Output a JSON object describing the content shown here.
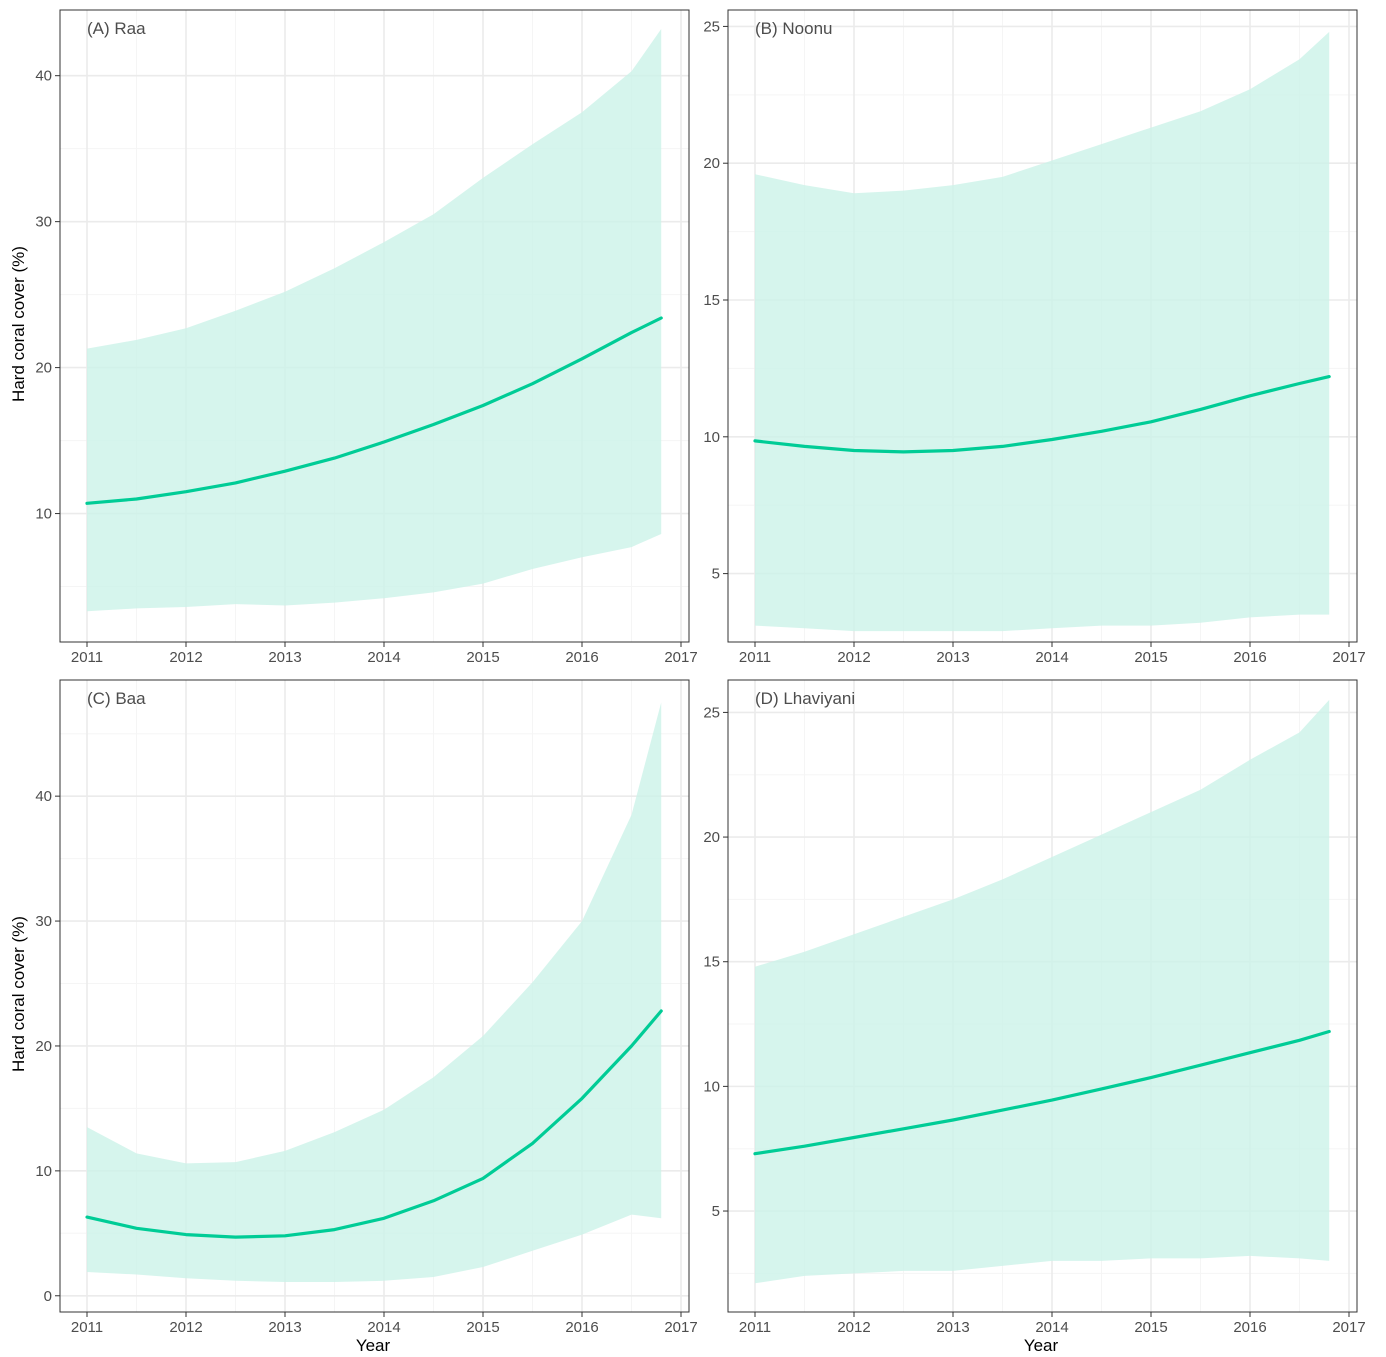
{
  "figure": {
    "y_axis_title": "Hard coral cover (%)",
    "x_axis_title": "Year"
  },
  "colors": {
    "line": "#00cc96",
    "ribbon": "#ccf2e8",
    "grid_major": "#ebebeb",
    "grid_minor": "#f5f5f5",
    "panel_border": "#333333",
    "tick_text": "#4d4d4d"
  },
  "chart_data": [
    {
      "type": "line",
      "title": "(A) Raa",
      "xlabel": "",
      "ylabel": "Hard coral cover (%)",
      "xlim": [
        2011,
        2017
      ],
      "ylim": [
        1.2,
        44.5
      ],
      "x_ticks": [
        2011,
        2012,
        2013,
        2014,
        2015,
        2016,
        2017
      ],
      "y_ticks": [
        10,
        20,
        30,
        40
      ],
      "grid": true,
      "series": [
        {
          "x": [
            2011.0,
            2011.5,
            2012.0,
            2012.5,
            2013.0,
            2013.5,
            2014.0,
            2014.5,
            2015.0,
            2015.5,
            2016.0,
            2016.5,
            2016.8
          ],
          "values": [
            10.7,
            11.0,
            11.5,
            12.1,
            12.9,
            13.8,
            14.9,
            16.1,
            17.4,
            18.9,
            20.6,
            22.4,
            23.4
          ],
          "lower": [
            3.3,
            3.5,
            3.6,
            3.8,
            3.7,
            3.9,
            4.2,
            4.6,
            5.2,
            6.2,
            7.0,
            7.7,
            8.6
          ],
          "upper": [
            21.3,
            21.9,
            22.7,
            23.9,
            25.2,
            26.8,
            28.6,
            30.5,
            33.0,
            35.3,
            37.5,
            40.3,
            43.2
          ]
        }
      ]
    },
    {
      "type": "line",
      "title": "(B) Noonu",
      "xlabel": "",
      "ylabel": "",
      "xlim": [
        2011,
        2017
      ],
      "ylim": [
        2.5,
        25.6
      ],
      "x_ticks": [
        2011,
        2012,
        2013,
        2014,
        2015,
        2016,
        2017
      ],
      "y_ticks": [
        5,
        10,
        15,
        20,
        25
      ],
      "grid": true,
      "series": [
        {
          "x": [
            2011.0,
            2011.5,
            2012.0,
            2012.5,
            2013.0,
            2013.5,
            2014.0,
            2014.5,
            2015.0,
            2015.5,
            2016.0,
            2016.5,
            2016.8
          ],
          "values": [
            9.85,
            9.65,
            9.5,
            9.45,
            9.5,
            9.65,
            9.9,
            10.2,
            10.55,
            11.0,
            11.5,
            11.95,
            12.2
          ],
          "lower": [
            3.1,
            3.0,
            2.9,
            2.9,
            2.9,
            2.9,
            3.0,
            3.1,
            3.1,
            3.2,
            3.4,
            3.5,
            3.5
          ],
          "upper": [
            19.6,
            19.2,
            18.9,
            19.0,
            19.2,
            19.5,
            20.1,
            20.7,
            21.3,
            21.9,
            22.7,
            23.8,
            24.8
          ]
        }
      ]
    },
    {
      "type": "line",
      "title": "(C) Baa",
      "xlabel": "Year",
      "ylabel": "Hard coral cover (%)",
      "xlim": [
        2011,
        2017
      ],
      "ylim": [
        -1.3,
        49.3
      ],
      "x_ticks": [
        2011,
        2012,
        2013,
        2014,
        2015,
        2016,
        2017
      ],
      "y_ticks": [
        0,
        10,
        20,
        30,
        40
      ],
      "grid": true,
      "series": [
        {
          "x": [
            2011.0,
            2011.5,
            2012.0,
            2012.5,
            2013.0,
            2013.5,
            2014.0,
            2014.5,
            2015.0,
            2015.5,
            2016.0,
            2016.5,
            2016.8
          ],
          "values": [
            6.3,
            5.4,
            4.9,
            4.7,
            4.8,
            5.3,
            6.2,
            7.6,
            9.4,
            12.2,
            15.8,
            20.0,
            22.8
          ],
          "lower": [
            1.9,
            1.7,
            1.4,
            1.2,
            1.1,
            1.1,
            1.2,
            1.5,
            2.3,
            3.6,
            4.9,
            6.5,
            6.2
          ],
          "upper": [
            13.5,
            11.4,
            10.6,
            10.7,
            11.6,
            13.1,
            14.9,
            17.5,
            20.8,
            25.1,
            30.0,
            38.5,
            47.5
          ]
        }
      ]
    },
    {
      "type": "line",
      "title": "(D) Lhaviyani",
      "xlabel": "Year",
      "ylabel": "",
      "xlim": [
        2011,
        2017
      ],
      "ylim": [
        0.95,
        26.3
      ],
      "x_ticks": [
        2011,
        2012,
        2013,
        2014,
        2015,
        2016,
        2017
      ],
      "y_ticks": [
        5,
        10,
        15,
        20,
        25
      ],
      "grid": true,
      "series": [
        {
          "x": [
            2011.0,
            2011.5,
            2012.0,
            2012.5,
            2013.0,
            2013.5,
            2014.0,
            2014.5,
            2015.0,
            2015.5,
            2016.0,
            2016.5,
            2016.8
          ],
          "values": [
            7.3,
            7.6,
            7.95,
            8.3,
            8.65,
            9.05,
            9.45,
            9.9,
            10.35,
            10.85,
            11.35,
            11.85,
            12.2
          ],
          "lower": [
            2.1,
            2.4,
            2.5,
            2.6,
            2.6,
            2.8,
            3.0,
            3.0,
            3.1,
            3.1,
            3.2,
            3.1,
            3.0
          ],
          "upper": [
            14.8,
            15.4,
            16.1,
            16.8,
            17.5,
            18.3,
            19.2,
            20.1,
            21.0,
            21.9,
            23.1,
            24.2,
            25.5
          ]
        }
      ]
    }
  ]
}
